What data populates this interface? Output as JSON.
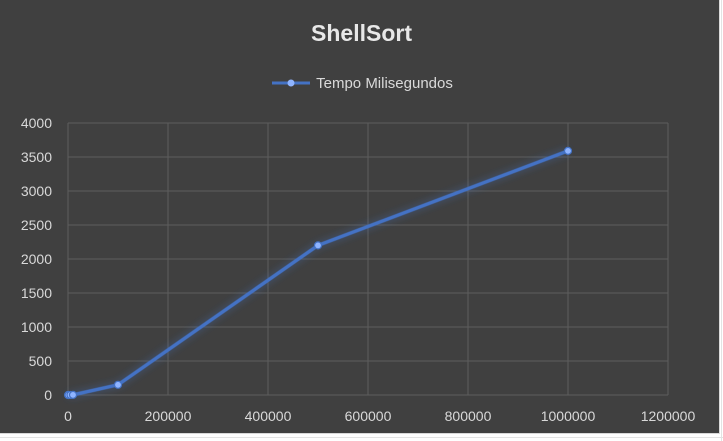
{
  "chart_data": {
    "type": "line",
    "title": "ShellSort",
    "xlabel": "",
    "ylabel": "",
    "xlim": [
      0,
      1200000
    ],
    "ylim": [
      0,
      4000
    ],
    "x_ticks": [
      0,
      200000,
      400000,
      600000,
      800000,
      1000000,
      1200000
    ],
    "y_ticks": [
      0,
      500,
      1000,
      1500,
      2000,
      2500,
      3000,
      3500,
      4000
    ],
    "grid": true,
    "legend_position": "top",
    "series": [
      {
        "name": "Tempo Milisegundos",
        "color": "#4472C4",
        "marker": "circle",
        "points": [
          {
            "x": 100,
            "y": 0
          },
          {
            "x": 1000,
            "y": 0
          },
          {
            "x": 5000,
            "y": 1
          },
          {
            "x": 10000,
            "y": 2
          },
          {
            "x": 100000,
            "y": 150
          },
          {
            "x": 500000,
            "y": 2200
          },
          {
            "x": 1000000,
            "y": 3590
          }
        ]
      }
    ]
  }
}
